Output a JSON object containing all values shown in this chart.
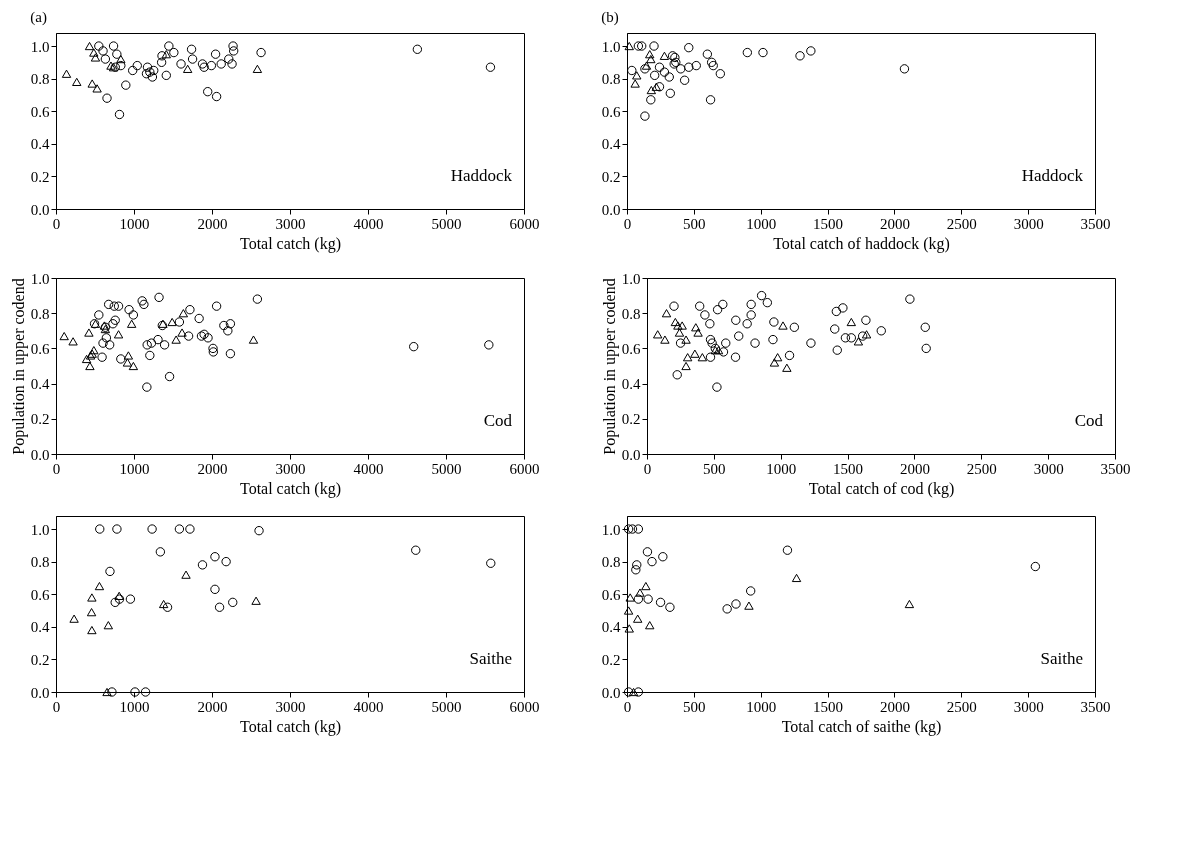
{
  "chart_data": [
    {
      "type": "scatter",
      "title": "(a)",
      "xlabel": "Total catch (kg)",
      "annotations": [
        "Haddock"
      ],
      "xlim": [
        0,
        6000
      ],
      "xticks": [
        0,
        1000,
        2000,
        3000,
        4000,
        5000,
        6000
      ],
      "ylim": [
        0,
        1.08
      ],
      "yticks": [
        {
          "value": 0,
          "label": "0.0"
        },
        {
          "value": 0.2,
          "label": "0.2"
        },
        {
          "value": 0.4,
          "label": "0.4"
        },
        {
          "value": 0.6,
          "label": "0.6"
        },
        {
          "value": 0.8,
          "label": "0.8"
        },
        {
          "value": 1,
          "label": "1.0"
        }
      ],
      "series": [
        {
          "color": "#000000",
          "marker": "circle",
          "x": [
            549,
            738,
            603,
            780,
            633,
            831,
            760,
            983,
            1042,
            1173,
            1160,
            1203,
            1253,
            1236,
            1359,
            1354,
            1447,
            1511,
            1414,
            1603,
            1738,
            1751,
            1878,
            1899,
            1992,
            2046,
            2118,
            2215,
            2257,
            2270,
            2278,
            2629,
            895,
            654,
            814,
            1945,
            2059,
            4633,
            5570
          ],
          "values": [
            1.0,
            1.0,
            0.97,
            0.95,
            0.92,
            0.88,
            0.87,
            0.85,
            0.88,
            0.87,
            0.83,
            0.84,
            0.85,
            0.81,
            0.94,
            0.9,
            1.0,
            0.96,
            0.82,
            0.89,
            0.98,
            0.92,
            0.89,
            0.87,
            0.88,
            0.95,
            0.89,
            0.92,
            0.89,
            1.0,
            0.97,
            0.96,
            0.76,
            0.68,
            0.58,
            0.72,
            0.69,
            0.98,
            0.87
          ]
        },
        {
          "color": "#000000",
          "marker": "triangle",
          "x": [
            430,
            485,
            506,
            831,
            705,
            738,
            1414,
            1688,
            2582,
            135,
            266,
            464,
            527
          ],
          "values": [
            1.0,
            0.96,
            0.93,
            0.92,
            0.88,
            0.87,
            0.95,
            0.86,
            0.86,
            0.83,
            0.78,
            0.77,
            0.74
          ]
        }
      ]
    },
    {
      "type": "scatter",
      "title": "(b)",
      "xlabel": "Total catch of haddock (kg)",
      "annotations": [
        "Haddock"
      ],
      "xlim": [
        0,
        3500
      ],
      "xticks": [
        0,
        500,
        1000,
        1500,
        2000,
        2500,
        3000,
        3500
      ],
      "ylim": [
        0,
        1.08
      ],
      "yticks": [
        {
          "value": 0,
          "label": "0.0"
        },
        {
          "value": 0.2,
          "label": "0.2"
        },
        {
          "value": 0.4,
          "label": "0.4"
        },
        {
          "value": 0.6,
          "label": "0.6"
        },
        {
          "value": 0.8,
          "label": "0.8"
        },
        {
          "value": 1,
          "label": "1.0"
        }
      ],
      "series": [
        {
          "color": "#000000",
          "marker": "circle",
          "x": [
            36,
            85,
            110,
            202,
            134,
            178,
            134,
            207,
            243,
            243,
            280,
            316,
            324,
            341,
            358,
            365,
            402,
            431,
            462,
            462,
            518,
            601,
            633,
            645,
            698,
            625,
            900,
            1017,
            1294,
            1375,
            2075,
            353
          ],
          "values": [
            0.85,
            1.0,
            1.0,
            1.0,
            0.86,
            0.67,
            0.57,
            0.82,
            0.87,
            0.75,
            0.84,
            0.81,
            0.71,
            0.94,
            0.93,
            0.9,
            0.86,
            0.79,
            0.99,
            0.87,
            0.88,
            0.95,
            0.9,
            0.88,
            0.83,
            0.67,
            0.96,
            0.96,
            0.94,
            0.97,
            0.86,
            0.89
          ]
        },
        {
          "color": "#000000",
          "marker": "triangle",
          "x": [
            17,
            73,
            61,
            170,
            178,
            280,
            182,
            219,
            146
          ],
          "values": [
            1.0,
            0.82,
            0.77,
            0.95,
            0.92,
            0.94,
            0.73,
            0.75,
            0.88
          ]
        }
      ]
    },
    {
      "type": "scatter",
      "xlabel": "Total catch (kg)",
      "ylabel": "Population in upper codend",
      "annotations": [
        "Cod"
      ],
      "xlim": [
        0,
        6000
      ],
      "xticks": [
        0,
        1000,
        2000,
        3000,
        4000,
        5000,
        6000
      ],
      "ylim": [
        0,
        1
      ],
      "yticks": [
        {
          "value": 0,
          "label": "0.0"
        },
        {
          "value": 0.2,
          "label": "0.2"
        },
        {
          "value": 0.4,
          "label": "0.4"
        },
        {
          "value": 0.6,
          "label": "0.6"
        },
        {
          "value": 0.8,
          "label": "0.8"
        },
        {
          "value": 1,
          "label": "1.0"
        }
      ],
      "series": [
        {
          "color": "#000000",
          "marker": "circle",
          "x": [
            549,
            494,
            675,
            747,
            802,
            759,
            730,
            633,
            646,
            603,
            688,
            591,
            831,
            937,
            992,
            1105,
            1127,
            1321,
            1169,
            1224,
            1308,
            1203,
            1392,
            1456,
            1165,
            1363,
            1582,
            1717,
            1700,
            1835,
            1865,
            1899,
            1949,
            2013,
            2017,
            2059,
            2152,
            2236,
            2203,
            2236,
            2582,
            4586,
            5549
          ],
          "values": [
            0.79,
            0.74,
            0.85,
            0.84,
            0.84,
            0.76,
            0.74,
            0.72,
            0.66,
            0.63,
            0.62,
            0.55,
            0.54,
            0.82,
            0.79,
            0.87,
            0.85,
            0.89,
            0.62,
            0.63,
            0.65,
            0.56,
            0.62,
            0.44,
            0.38,
            0.73,
            0.75,
            0.82,
            0.67,
            0.77,
            0.67,
            0.68,
            0.66,
            0.6,
            0.58,
            0.84,
            0.73,
            0.74,
            0.7,
            0.57,
            0.88,
            0.61,
            0.62
          ]
        },
        {
          "color": "#000000",
          "marker": "triangle",
          "x": [
            105,
            219,
            422,
            506,
            620,
            633,
            802,
            970,
            1371,
            1489,
            1633,
            1616,
            1540,
            2532,
            485,
            464,
            443,
            392,
            435,
            928,
            916,
            992
          ],
          "values": [
            0.67,
            0.64,
            0.69,
            0.74,
            0.73,
            0.71,
            0.68,
            0.74,
            0.74,
            0.75,
            0.8,
            0.69,
            0.65,
            0.65,
            0.59,
            0.57,
            0.56,
            0.54,
            0.5,
            0.56,
            0.52,
            0.5
          ]
        }
      ]
    },
    {
      "type": "scatter",
      "xlabel": "Total catch of cod (kg)",
      "ylabel": "Population in upper codend",
      "annotations": [
        "Cod"
      ],
      "xlim": [
        0,
        3500
      ],
      "xticks": [
        0,
        500,
        1000,
        1500,
        2000,
        2500,
        3000,
        3500
      ],
      "ylim": [
        0,
        1
      ],
      "yticks": [
        {
          "value": 0,
          "label": "0.0"
        },
        {
          "value": 0.2,
          "label": "0.2"
        },
        {
          "value": 0.4,
          "label": "0.4"
        },
        {
          "value": 0.6,
          "label": "0.6"
        },
        {
          "value": 0.8,
          "label": "0.8"
        },
        {
          "value": 1,
          "label": "1.0"
        }
      ],
      "series": [
        {
          "color": "#000000",
          "marker": "circle",
          "x": [
            202,
            226,
            251,
            394,
            433,
            470,
            475,
            487,
            475,
            511,
            523,
            528,
            567,
            572,
            589,
            662,
            664,
            686,
            749,
            779,
            779,
            808,
            857,
            900,
            942,
            949,
            1066,
            1102,
            1226,
            1404,
            1416,
            1423,
            1465,
            1484,
            1528,
            1637,
            1752,
            1966,
            2081,
            2088,
            1613
          ],
          "values": [
            0.84,
            0.45,
            0.63,
            0.84,
            0.79,
            0.74,
            0.65,
            0.63,
            0.55,
            0.6,
            0.38,
            0.82,
            0.85,
            0.58,
            0.63,
            0.55,
            0.76,
            0.67,
            0.74,
            0.85,
            0.79,
            0.63,
            0.9,
            0.86,
            0.65,
            0.75,
            0.56,
            0.72,
            0.63,
            0.71,
            0.81,
            0.59,
            0.83,
            0.66,
            0.66,
            0.76,
            0.7,
            0.88,
            0.72,
            0.6,
            0.67
          ]
        },
        {
          "color": "#000000",
          "marker": "triangle",
          "x": [
            80,
            134,
            146,
            212,
            231,
            263,
            243,
            292,
            304,
            292,
            358,
            414,
            365,
            382,
            511,
            535,
            953,
            977,
            1017,
            1046,
            1528,
            1581,
            1642
          ],
          "values": [
            0.68,
            0.65,
            0.8,
            0.75,
            0.73,
            0.73,
            0.69,
            0.65,
            0.55,
            0.5,
            0.57,
            0.55,
            0.72,
            0.69,
            0.59,
            0.59,
            0.52,
            0.55,
            0.73,
            0.49,
            0.75,
            0.64,
            0.68
          ]
        }
      ]
    },
    {
      "type": "scatter",
      "xlabel": "Total catch (kg)",
      "annotations": [
        "Saithe"
      ],
      "xlim": [
        0,
        6000
      ],
      "xticks": [
        0,
        1000,
        2000,
        3000,
        4000,
        5000,
        6000
      ],
      "ylim": [
        0,
        1.08
      ],
      "yticks": [
        {
          "value": 0,
          "label": "0.0"
        },
        {
          "value": 0.2,
          "label": "0.2"
        },
        {
          "value": 0.4,
          "label": "0.4"
        },
        {
          "value": 0.6,
          "label": "0.6"
        },
        {
          "value": 0.8,
          "label": "0.8"
        },
        {
          "value": 1,
          "label": "1.0"
        }
      ],
      "series": [
        {
          "color": "#000000",
          "marker": "circle",
          "x": [
            561,
            781,
            1232,
            1582,
            1717,
            2603,
            1338,
            692,
            1878,
            2038,
            2181,
            2038,
            2097,
            2266,
            759,
            814,
            954,
            1430,
            717,
            1013,
            1148,
            4612,
            5574
          ],
          "values": [
            1.0,
            1.0,
            1.0,
            1.0,
            1.0,
            0.99,
            0.86,
            0.74,
            0.78,
            0.83,
            0.8,
            0.63,
            0.52,
            0.55,
            0.55,
            0.57,
            0.57,
            0.52,
            0.0,
            0.0,
            0.0,
            0.87,
            0.79
          ]
        },
        {
          "color": "#000000",
          "marker": "triangle",
          "x": [
            654,
            232,
            456,
            460,
            557,
            460,
            671,
            810,
            1380,
            1667,
            2565
          ],
          "values": [
            0.0,
            0.45,
            0.49,
            0.58,
            0.65,
            0.38,
            0.41,
            0.59,
            0.54,
            0.72,
            0.56
          ]
        }
      ]
    },
    {
      "type": "scatter",
      "xlabel": "Total catch of saithe (kg)",
      "annotations": [
        "Saithe"
      ],
      "xlim": [
        0,
        3500
      ],
      "xticks": [
        0,
        500,
        1000,
        1500,
        2000,
        2500,
        3000,
        3500
      ],
      "ylim": [
        0,
        1.08
      ],
      "yticks": [
        {
          "value": 0,
          "label": "0.0"
        },
        {
          "value": 0.2,
          "label": "0.2"
        },
        {
          "value": 0.4,
          "label": "0.4"
        },
        {
          "value": 0.6,
          "label": "0.6"
        },
        {
          "value": 0.8,
          "label": "0.8"
        },
        {
          "value": 1,
          "label": "1.0"
        }
      ],
      "series": [
        {
          "color": "#000000",
          "marker": "circle",
          "x": [
            12,
            41,
            85,
            73,
            66,
            85,
            153,
            187,
            268,
            158,
            251,
            321,
            749,
            815,
            925,
            1200,
            3054,
            12,
            85
          ],
          "values": [
            1.0,
            1.0,
            1.0,
            0.78,
            0.75,
            0.57,
            0.86,
            0.8,
            0.83,
            0.57,
            0.55,
            0.52,
            0.51,
            0.54,
            0.62,
            0.87,
            0.77,
            0.0,
            0.0
          ]
        },
        {
          "color": "#000000",
          "marker": "triangle",
          "x": [
            24,
            12,
            17,
            80,
            97,
            141,
            170,
            912,
            1268,
            2112,
            49
          ],
          "values": [
            0.58,
            0.5,
            0.39,
            0.45,
            0.61,
            0.65,
            0.41,
            0.53,
            0.7,
            0.54,
            0.0
          ]
        }
      ]
    }
  ]
}
